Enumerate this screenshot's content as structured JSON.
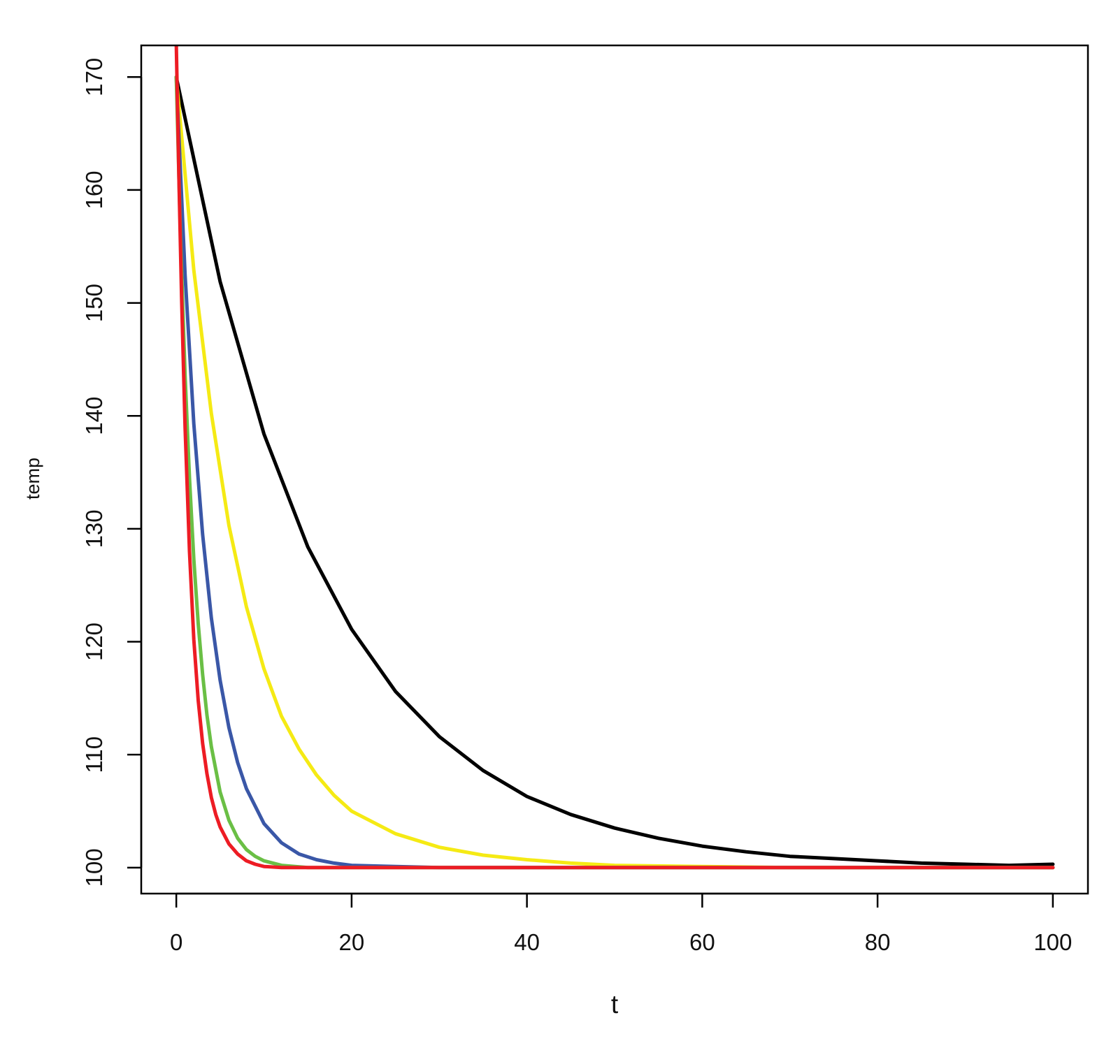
{
  "chart_data": {
    "type": "line",
    "title": "",
    "xlabel": "t",
    "ylabel": "temp",
    "xlim": [
      -4,
      104
    ],
    "ylim": [
      97.7,
      172.8
    ],
    "x_ticks": [
      0,
      20,
      40,
      60,
      80,
      100
    ],
    "x_tick_labels": [
      "0",
      "20",
      "40",
      "60",
      "80",
      "100"
    ],
    "y_ticks": [
      100,
      110,
      120,
      130,
      140,
      150,
      160,
      170
    ],
    "y_tick_labels": [
      "100",
      "110",
      "120",
      "130",
      "140",
      "150",
      "160",
      "170"
    ],
    "grid": false,
    "series": [
      {
        "color": "#000000",
        "x": [
          0,
          5,
          10,
          15,
          20,
          25,
          30,
          35,
          40,
          45,
          50,
          55,
          60,
          65,
          70,
          75,
          80,
          85,
          90,
          95,
          100
        ],
        "values": [
          170,
          151.9,
          138.4,
          128.4,
          121.1,
          115.6,
          111.6,
          108.6,
          106.3,
          104.7,
          103.5,
          102.6,
          101.9,
          101.4,
          101.0,
          100.8,
          100.6,
          100.4,
          100.3,
          100.2,
          100.3
        ]
      },
      {
        "color": "#f5ea14",
        "x": [
          0,
          2,
          4,
          6,
          8,
          10,
          12,
          14,
          16,
          18,
          20,
          25,
          30,
          35,
          40,
          45,
          50,
          60,
          70,
          80,
          90,
          100
        ],
        "values": [
          170,
          152.9,
          140.2,
          130.3,
          123.1,
          117.6,
          113.4,
          110.5,
          108.2,
          106.4,
          105.0,
          103.0,
          101.8,
          101.1,
          100.7,
          100.4,
          100.2,
          100.1,
          100.0,
          100.0,
          100.0,
          100.0
        ]
      },
      {
        "color": "#3a57a7",
        "x": [
          0,
          1,
          2,
          3,
          4,
          5,
          6,
          7,
          8,
          10,
          12,
          14,
          16,
          18,
          20,
          25,
          30,
          40,
          60,
          80,
          100
        ],
        "values": [
          170,
          152.5,
          139.3,
          129.5,
          122.1,
          116.6,
          112.4,
          109.3,
          107.0,
          103.9,
          102.2,
          101.2,
          100.7,
          100.4,
          100.2,
          100.1,
          100.0,
          100.0,
          100.0,
          100.0,
          100.0
        ]
      },
      {
        "color": "#6abf45",
        "x": [
          0,
          0.5,
          1,
          1.5,
          2,
          2.5,
          3,
          3.5,
          4,
          5,
          6,
          7,
          8,
          9,
          10,
          12,
          15,
          20,
          40,
          70,
          100
        ],
        "values": [
          170,
          155.3,
          143.6,
          134.5,
          127.3,
          121.6,
          117.1,
          113.5,
          110.7,
          106.7,
          104.2,
          102.6,
          101.6,
          101.0,
          100.6,
          100.2,
          100.0,
          100.0,
          100.0,
          100.0,
          100.0
        ]
      },
      {
        "color": "#ed1c24",
        "x": [
          0,
          0.3,
          0.6,
          1,
          1.5,
          2,
          2.5,
          3,
          3.5,
          4,
          4.5,
          5,
          6,
          7,
          8,
          9,
          10,
          12,
          20,
          50,
          100
        ],
        "values": [
          173,
          161.0,
          150.5,
          139.0,
          128.0,
          120.2,
          114.8,
          111.0,
          108.3,
          106.2,
          104.7,
          103.6,
          102.1,
          101.2,
          100.6,
          100.3,
          100.1,
          100.0,
          100.0,
          100.0,
          100.0
        ]
      }
    ]
  }
}
